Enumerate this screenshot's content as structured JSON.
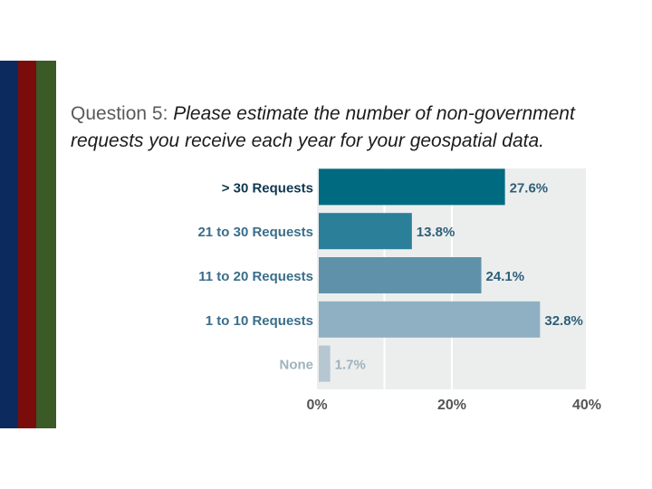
{
  "slide": {
    "question_prefix": "Question 5: ",
    "question_text": "Please estimate the number of non-government requests you receive each year for your geospatial data.",
    "stripe_colors": [
      "#0d2a5e",
      "#7a0c0c",
      "#3b5a26"
    ]
  },
  "chart_data": {
    "type": "bar",
    "orientation": "horizontal",
    "title": "",
    "categories": [
      "> 30 Requests",
      "21 to 30 Requests",
      "11 to 20 Requests",
      "1 to 10 Requests",
      "None"
    ],
    "values": [
      27.6,
      13.8,
      24.1,
      32.8,
      1.7
    ],
    "value_labels": [
      "27.6%",
      "13.8%",
      "24.1%",
      "32.8%",
      "1.7%"
    ],
    "bar_colors": [
      "#006a80",
      "#2b7f98",
      "#5f92aa",
      "#8fb0c2",
      "#b6c7d2"
    ],
    "xlim": [
      0,
      40
    ],
    "xticks": [
      0,
      20,
      40
    ],
    "xtick_labels": [
      "0%",
      "20%",
      "40%"
    ],
    "xlabel": "",
    "ylabel": "",
    "grid": true,
    "background": "#eceeee"
  }
}
